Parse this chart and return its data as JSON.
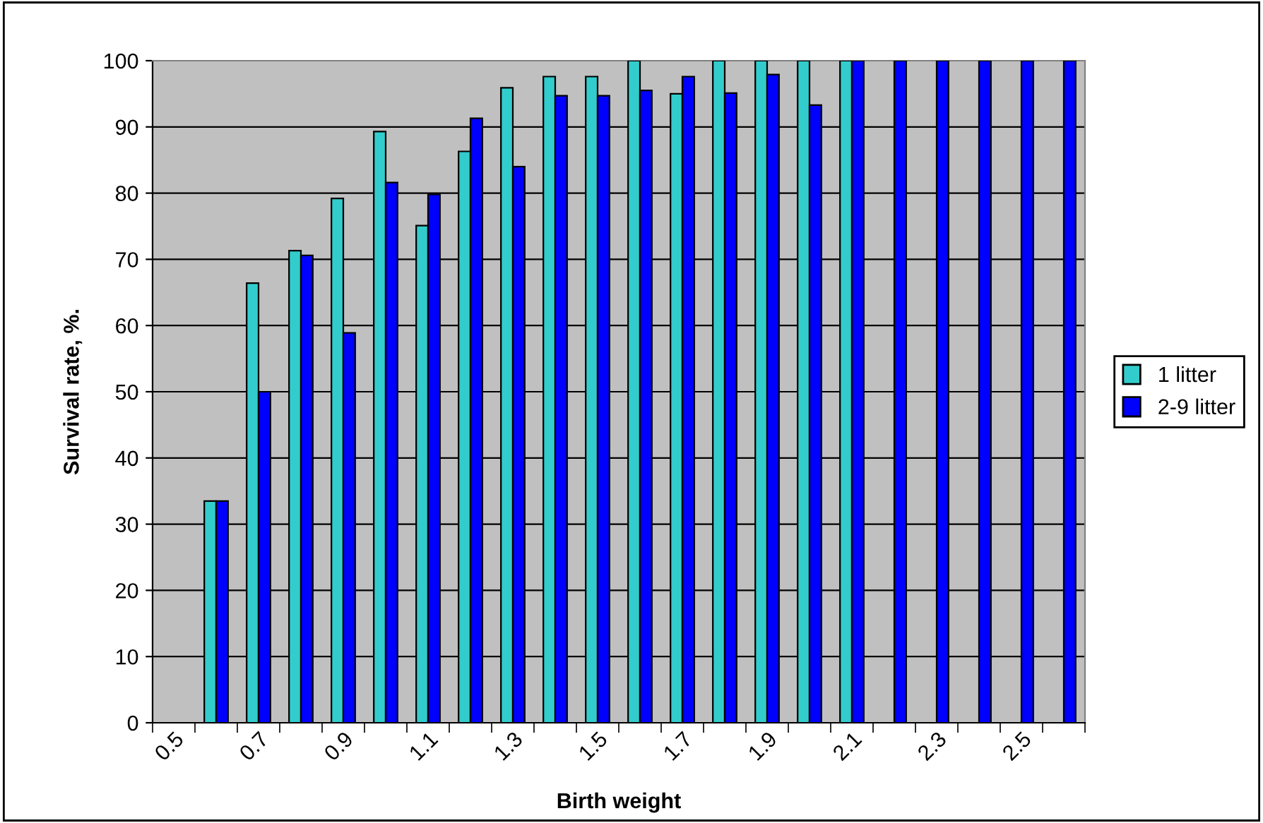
{
  "chart_data": {
    "type": "bar",
    "xlabel": "Birth weight",
    "ylabel": "Survival rate, %.",
    "categories": [
      "0.5",
      null,
      "0.7",
      null,
      "0.9",
      null,
      "1.1",
      null,
      "1.3",
      null,
      "1.5",
      null,
      "1.7",
      null,
      "1.9",
      null,
      "2.1",
      null,
      "2.3",
      null,
      "2.5",
      null
    ],
    "series": [
      {
        "name": "1 litter",
        "color": "#33cccc",
        "values": [
          null,
          33.5,
          66.4,
          71.3,
          79.2,
          89.3,
          75.1,
          86.3,
          95.9,
          97.6,
          97.6,
          100,
          95.0,
          100,
          100,
          100,
          100,
          null,
          null,
          null,
          null,
          null
        ]
      },
      {
        "name": "2-9 litter",
        "color": "#0000ff",
        "values": [
          null,
          33.5,
          50,
          70.6,
          58.9,
          81.6,
          79.8,
          91.3,
          84,
          94.7,
          94.7,
          95.5,
          97.6,
          95.1,
          97.9,
          93.3,
          100,
          100,
          100,
          100,
          100,
          100
        ]
      }
    ],
    "ylim": [
      0,
      100
    ],
    "yticks": [
      0,
      10,
      20,
      30,
      40,
      50,
      60,
      70,
      80,
      90,
      100
    ],
    "grid": "y",
    "legend": "right"
  }
}
